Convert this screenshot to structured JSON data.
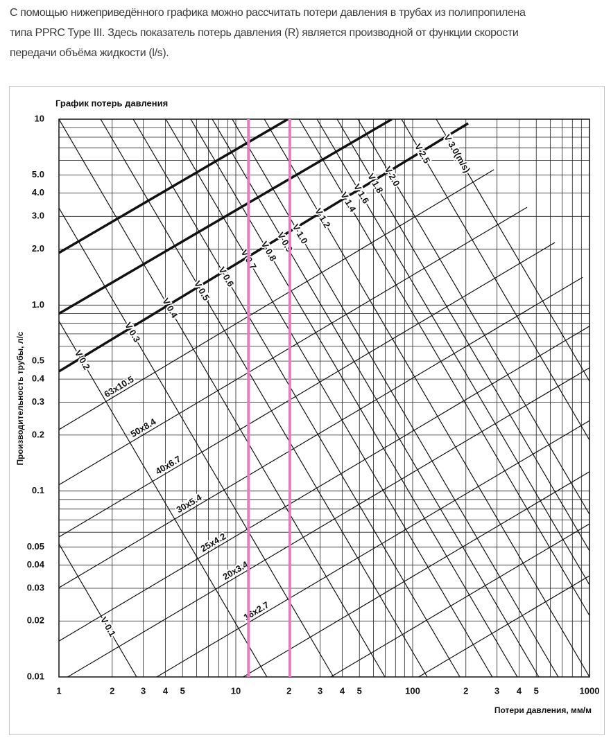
{
  "intro": [
    "С помощью нижеприведённого графика можно рассчитать потери давления в трубах из полипропилена",
    "типа PPRC Type III. Здесь показатель потерь давления (R) является производной от функции скорости",
    "передачи объёма жидкости (l/s)."
  ],
  "chart_data": {
    "type": "line",
    "title": "График потерь давления",
    "x_label": "Потери давления, мм/м",
    "y_label": "Производительность трубы, л/с",
    "xscale": "log",
    "yscale": "log",
    "xlim": [
      1,
      1000
    ],
    "ylim": [
      0.01,
      10
    ],
    "xticks": [
      1,
      2,
      3,
      4,
      5,
      10,
      {
        "value": 20,
        "label": "2"
      },
      {
        "value": 30,
        "label": "3"
      },
      {
        "value": 40,
        "label": "4"
      },
      {
        "value": 50,
        "label": "5"
      },
      100,
      {
        "value": 200,
        "label": "2"
      },
      {
        "value": 300,
        "label": "3"
      },
      {
        "value": 400,
        "label": "4"
      },
      {
        "value": 500,
        "label": "5"
      },
      1000
    ],
    "yticks": [
      10,
      {
        "value": 5,
        "label": "5.0"
      },
      {
        "value": 4,
        "label": "4.0"
      },
      {
        "value": 3,
        "label": "3.0"
      },
      {
        "value": 2,
        "label": "2.0"
      },
      {
        "value": 1,
        "label": "1.0"
      },
      0.5,
      0.4,
      0.3,
      0.2,
      0.1,
      0.05,
      0.04,
      0.03,
      0.02,
      0.01
    ],
    "xgrid": [
      1,
      2,
      3,
      4,
      5,
      6,
      7,
      8,
      9,
      10,
      20,
      30,
      40,
      50,
      60,
      70,
      80,
      90,
      100,
      200,
      300,
      400,
      500,
      600,
      700,
      800,
      900,
      1000
    ],
    "ygrid": [
      0.01,
      0.02,
      0.03,
      0.04,
      0.05,
      0.06,
      0.07,
      0.08,
      0.09,
      0.1,
      0.2,
      0.3,
      0.4,
      0.5,
      0.6,
      0.7,
      0.8,
      0.9,
      1,
      2,
      3,
      4,
      5,
      6,
      7,
      8,
      9,
      10
    ],
    "grid": true,
    "line_color": "#111111",
    "pipes": [
      {
        "bold": true,
        "x": [
          1,
          19.7
        ],
        "values": [
          1.91,
          10
        ]
      },
      {
        "bold": true,
        "x": [
          1,
          76.3
        ],
        "values": [
          0.9,
          10
        ]
      },
      {
        "bold": true,
        "x": [
          1,
          206
        ],
        "values": [
          0.44,
          9.5
        ]
      },
      {
        "name": "63x10.5",
        "x": [
          1,
          288
        ],
        "values": [
          0.214,
          5.35
        ]
      },
      {
        "name": "50x8.4",
        "x": [
          1,
          444
        ],
        "values": [
          0.108,
          3.36
        ]
      },
      {
        "name": "40x6.7",
        "x": [
          1,
          637
        ],
        "values": [
          0.0566,
          2.17
        ]
      },
      {
        "name": "30x5.4",
        "x": [
          1,
          914
        ],
        "values": [
          0.0302,
          1.41
        ]
      },
      {
        "name": "25x4.2",
        "x": [
          1,
          1000
        ],
        "values": [
          0.0156,
          0.77
        ]
      },
      {
        "name": "20x3.4",
        "x": [
          1.12,
          1000
        ],
        "values": [
          0.01,
          0.46
        ]
      },
      {
        "name": "16x2.7",
        "x": [
          3.57,
          1000
        ],
        "values": [
          0.01,
          0.239
        ]
      },
      {
        "x": [
          11,
          1000
        ],
        "values": [
          0.01,
          0.127
        ]
      },
      {
        "x": [
          34.4,
          1000
        ],
        "values": [
          0.01,
          0.0666
        ]
      },
      {
        "x": [
          108,
          1000
        ],
        "values": [
          0.01,
          0.035
        ]
      }
    ],
    "velocities": [
      {
        "name": "V 0.1",
        "x": [
          1,
          2.75
        ],
        "values": [
          0.052,
          0.01
        ]
      },
      {
        "name": "V 0.2",
        "x": [
          1,
          15
        ],
        "values": [
          0.82,
          0.01
        ]
      },
      {
        "name": "V 0.3",
        "x": [
          1,
          35.7
        ],
        "values": [
          3.33,
          0.01
        ]
      },
      {
        "name": "V 0.4",
        "x": [
          1,
          69.7
        ],
        "values": [
          10,
          0.01
        ]
      },
      {
        "name": "V 0.5",
        "x": [
          1.72,
          121
        ],
        "values": [
          10,
          0.01
        ]
      },
      {
        "name": "V 0.6",
        "x": [
          2.63,
          185
        ],
        "values": [
          10,
          0.01
        ]
      },
      {
        "name": "V 0.7",
        "x": [
          4.02,
          282
        ],
        "values": [
          10,
          0.01
        ]
      },
      {
        "name": "V 0.8",
        "x": [
          5.56,
          391
        ],
        "values": [
          10,
          0.01
        ]
      },
      {
        "name": "V 0.9",
        "x": [
          7.36,
          517
        ],
        "values": [
          10,
          0.01
        ]
      },
      {
        "name": "V 1.0",
        "x": [
          9.55,
          666
        ],
        "values": [
          10,
          0.01
        ]
      },
      {
        "name": "V 1.2",
        "x": [
          14.5,
          1000
        ],
        "values": [
          10,
          0.01
        ]
      },
      {
        "name": "V 1.4",
        "x": [
          22.8,
          1000
        ],
        "values": [
          10,
          0.0214
        ]
      },
      {
        "name": "V 1.6",
        "x": [
          28.8,
          1000
        ],
        "values": [
          10,
          0.0313
        ]
      },
      {
        "name": "V 1.8",
        "x": [
          37.4,
          1000
        ],
        "values": [
          10,
          0.0477
        ]
      },
      {
        "name": "V 2.0",
        "x": [
          49,
          1000
        ],
        "values": [
          10,
          0.075
        ]
      },
      {
        "name": "V 2.5",
        "x": [
          86.5,
          1000
        ],
        "values": [
          10,
          0.188
        ]
      },
      {
        "name": "V 3.0(m/s)",
        "x": [
          136,
          1000
        ],
        "values": [
          10,
          0.39
        ]
      }
    ],
    "reference_lines": {
      "x": [
        11.8,
        20.2
      ],
      "color": "#e57cc0"
    }
  }
}
